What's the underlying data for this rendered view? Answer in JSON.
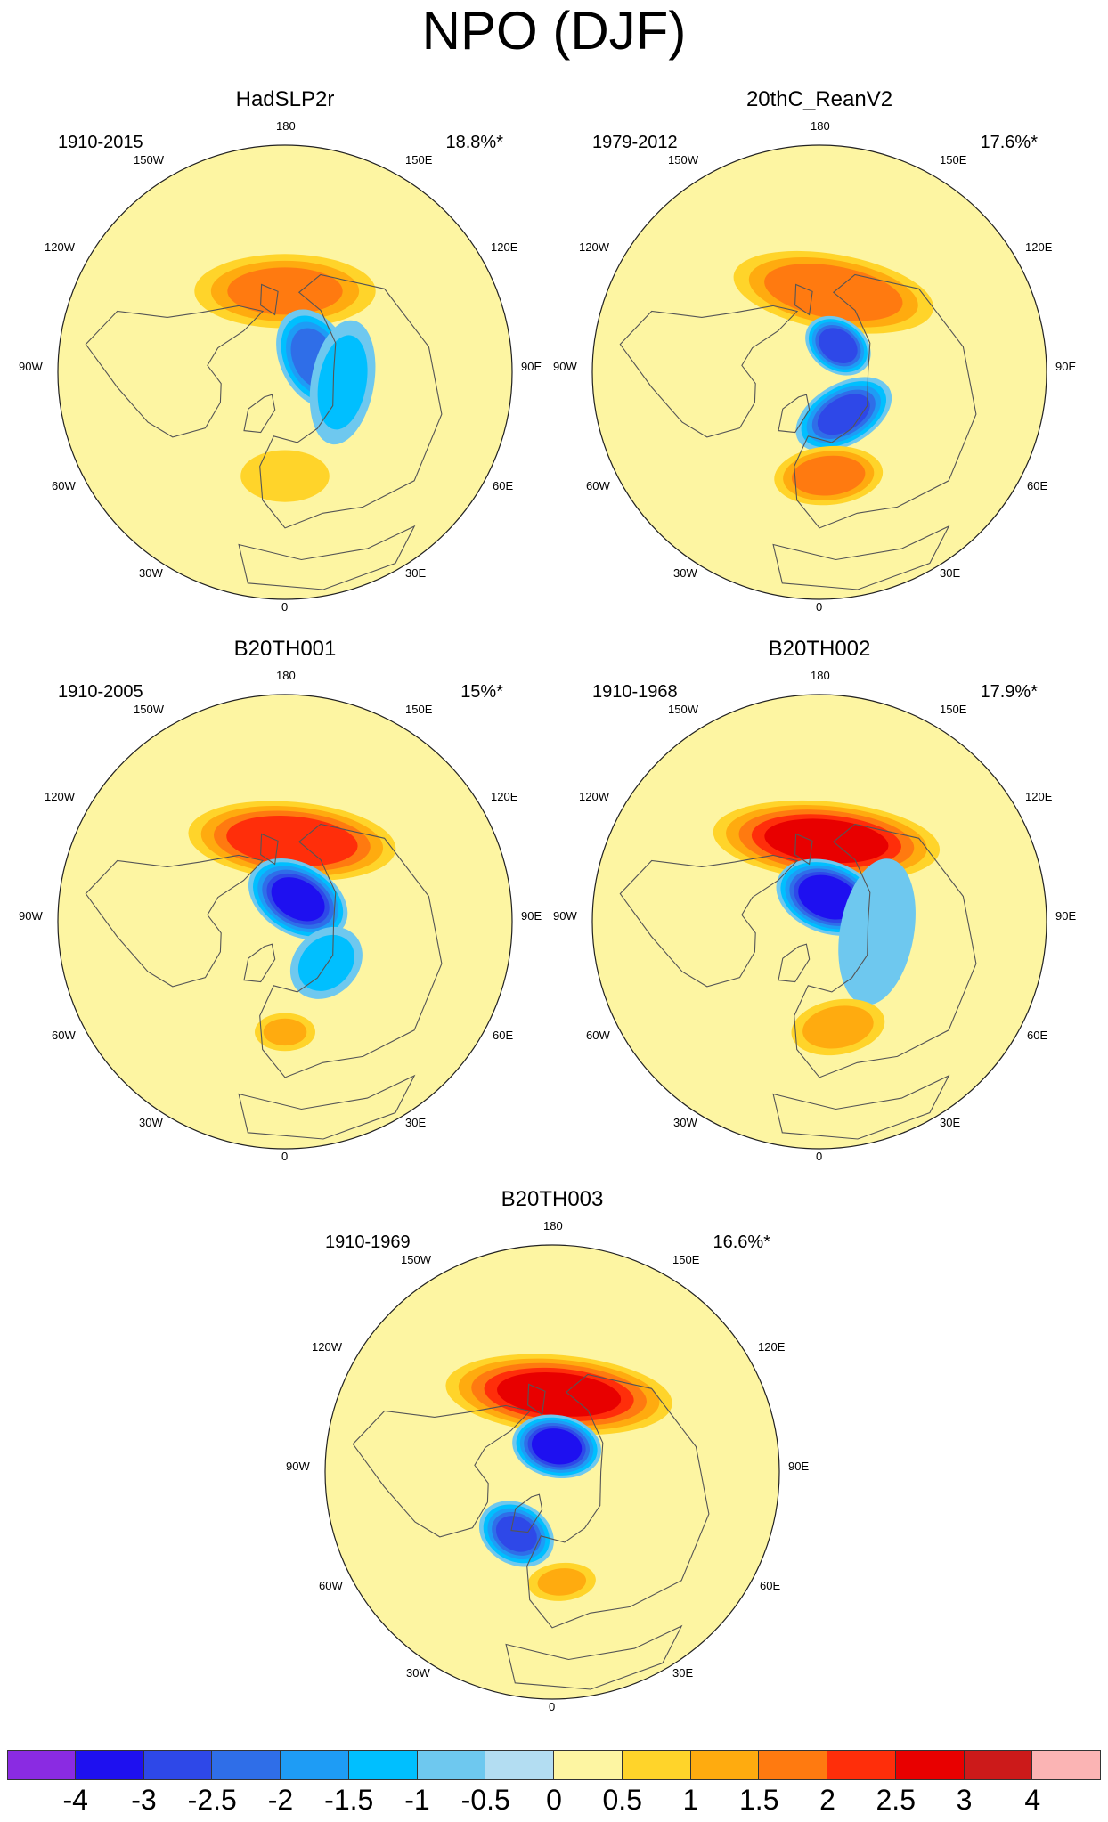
{
  "title": "NPO (DJF)",
  "longitude_labels": {
    "top": "180",
    "bottom": "0",
    "upper_left": "150W",
    "upper_right": "150E",
    "left_upper": "120W",
    "right_upper": "120E",
    "left": "90W",
    "right": "90E",
    "left_lower": "60W",
    "right_lower": "60E",
    "lower_left": "30W",
    "lower_right": "30E"
  },
  "panels": [
    {
      "name": "HadSLP2r",
      "period": "1910-2015",
      "variance": "18.8%*"
    },
    {
      "name": "20thC_ReanV2",
      "period": "1979-2012",
      "variance": "17.6%*"
    },
    {
      "name": "B20TH001",
      "period": "1910-2005",
      "variance": "15%*"
    },
    {
      "name": "B20TH002",
      "period": "1910-1968",
      "variance": "17.9%*"
    },
    {
      "name": "B20TH003",
      "period": "1910-1969",
      "variance": "16.6%*"
    }
  ],
  "colorbar": {
    "colors": [
      "#8a2be2",
      "#1e10f0",
      "#2e48e8",
      "#2f6ee8",
      "#1e9cf5",
      "#00bfff",
      "#6ec8ef",
      "#b3ddf2",
      "#fdf5a2",
      "#ffd42a",
      "#ffab0f",
      "#ff7a10",
      "#ff2e0a",
      "#e80000",
      "#cc1a1a",
      "#fbb4b4"
    ],
    "labels": [
      "-4",
      "-3",
      "-2.5",
      "-2",
      "-1.5",
      "-1",
      "-0.5",
      "0",
      "0.5",
      "1",
      "1.5",
      "2",
      "2.5",
      "3",
      "4"
    ]
  },
  "map_colors": {
    "background": "#fdf5a2",
    "coastline": "#555555",
    "disk_border": "#222222"
  },
  "anomaly_fields": [
    [
      {
        "lon": 180,
        "colat": 25,
        "value": 1.6,
        "size": [
          22,
          9
        ]
      },
      {
        "lon": 115,
        "colat": 10,
        "value": -2.3,
        "size": [
          12,
          8
        ]
      },
      {
        "lon": 0,
        "colat": 32,
        "value": 0.9,
        "size": [
          12,
          7
        ]
      },
      {
        "lon": 80,
        "colat": 18,
        "value": -1.2,
        "size": [
          16,
          8
        ]
      }
    ],
    [
      {
        "lon": 170,
        "colat": 25,
        "value": 1.9,
        "size": [
          24,
          9
        ]
      },
      {
        "lon": 145,
        "colat": 10,
        "value": -2.9,
        "size": [
          8,
          6
        ]
      },
      {
        "lon": 30,
        "colat": 15,
        "value": -2.6,
        "size": [
          12,
          7
        ]
      },
      {
        "lon": 5,
        "colat": 32,
        "value": 1.8,
        "size": [
          13,
          7
        ]
      }
    ],
    [
      {
        "lon": 175,
        "colat": 25,
        "value": 2.4,
        "size": [
          24,
          9
        ]
      },
      {
        "lon": 150,
        "colat": 8,
        "value": -3.2,
        "size": [
          12,
          8
        ]
      },
      {
        "lon": 45,
        "colat": 18,
        "value": -1.3,
        "size": [
          10,
          8
        ]
      },
      {
        "lon": 0,
        "colat": 34,
        "value": 1.0,
        "size": [
          8,
          5
        ]
      }
    ],
    [
      {
        "lon": 175,
        "colat": 25,
        "value": 2.6,
        "size": [
          26,
          9
        ]
      },
      {
        "lon": 160,
        "colat": 8,
        "value": -3.5,
        "size": [
          12,
          8
        ]
      },
      {
        "lon": 80,
        "colat": 18,
        "value": -0.9,
        "size": [
          20,
          10
        ]
      },
      {
        "lon": 10,
        "colat": 33,
        "value": 1.2,
        "size": [
          12,
          7
        ]
      }
    ],
    [
      {
        "lon": 175,
        "colat": 24,
        "value": 2.6,
        "size": [
          26,
          9
        ]
      },
      {
        "lon": 170,
        "colat": 8,
        "value": -3.4,
        "size": [
          10,
          7
        ]
      },
      {
        "lon": 330,
        "colat": 22,
        "value": -2.6,
        "size": [
          9,
          7
        ]
      },
      {
        "lon": 5,
        "colat": 34,
        "value": 1.0,
        "size": [
          9,
          5
        ]
      }
    ]
  ]
}
